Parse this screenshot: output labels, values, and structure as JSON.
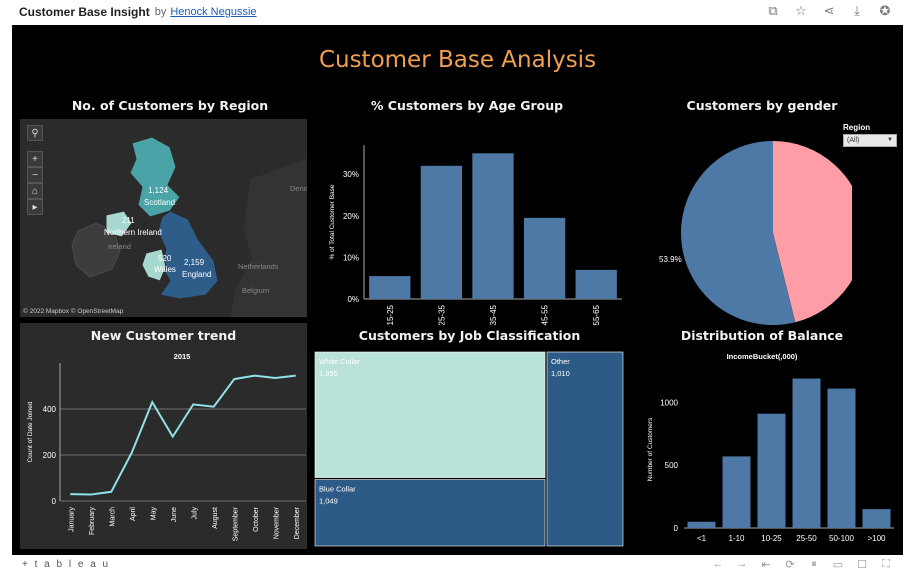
{
  "header": {
    "title": "Customer Base Insight",
    "by": "by",
    "author": "Henock Negussie"
  },
  "dashboard_title": "Customer Base Analysis",
  "panels": {
    "region": "No. of Customers by Region",
    "age": "% Customers by Age Group",
    "gender": "Customers by gender",
    "trend": "New Customer trend",
    "job": "Customers by Job Classification",
    "balance": "Distribution of Balance"
  },
  "filter": {
    "label": "Region",
    "value": "(All)"
  },
  "map": {
    "attribution": "© 2022 Mapbox © OpenStreetMap",
    "regions": [
      {
        "name": "Scotland",
        "value": "1,124"
      },
      {
        "name": "Northern Ireland",
        "value": "211"
      },
      {
        "name": "Wales",
        "value": "520"
      },
      {
        "name": "England",
        "value": "2,159"
      }
    ],
    "basemap_labels": [
      "Ireland",
      "Netherlands",
      "Belgium",
      "Denm"
    ]
  },
  "colors": {
    "bar": "#4e79a7",
    "pink": "#ff9da7",
    "treemap_light": "#b9e2d9",
    "treemap_dark": "#2e5a87",
    "line": "#8fe3e8",
    "title_orange": "#f0a050"
  },
  "chart_data": [
    {
      "type": "bar",
      "title": "% Customers by Age Group",
      "ylabel": "% of Total Customer Base",
      "categories": [
        "15-25",
        "25-35",
        "35-45",
        "45-55",
        "55-65"
      ],
      "values": [
        5.5,
        32,
        35,
        19.5,
        7
      ],
      "ylim": [
        0,
        37
      ],
      "yticks": [
        "0%",
        "10%",
        "20%",
        "30%"
      ]
    },
    {
      "type": "pie",
      "title": "Customers by gender",
      "slices": [
        {
          "label": "53.9%",
          "value": 53.9,
          "color": "#4e79a7"
        },
        {
          "label": "46.1%",
          "value": 46.1,
          "color": "#ff9da7"
        }
      ]
    },
    {
      "type": "line",
      "title": "New Customer trend",
      "subtitle": "2015",
      "ylabel": "Count of Date Joined",
      "categories": [
        "January",
        "February",
        "March",
        "April",
        "May",
        "June",
        "July",
        "August",
        "September",
        "October",
        "November",
        "December"
      ],
      "values": [
        30,
        28,
        40,
        210,
        430,
        280,
        420,
        410,
        530,
        545,
        535,
        545
      ],
      "ylim": [
        0,
        600
      ],
      "yticks": [
        "0",
        "200",
        "400"
      ]
    },
    {
      "type": "table",
      "title": "Customers by Job Classification",
      "items": [
        {
          "label": "White Collar",
          "value": "1,955",
          "n": 1955
        },
        {
          "label": "Blue Collar",
          "value": "1,049",
          "n": 1049
        },
        {
          "label": "Other",
          "value": "1,010",
          "n": 1010
        }
      ]
    },
    {
      "type": "bar",
      "title": "Distribution of Balance",
      "subtitle": "IncomeBucket(,000)",
      "ylabel": "Number of Customers",
      "categories": [
        "<1",
        "1-10",
        "10-25",
        "25-50",
        "50-100",
        ">100"
      ],
      "values": [
        50,
        570,
        910,
        1190,
        1110,
        150
      ],
      "ylim": [
        0,
        1250
      ],
      "yticks": [
        "0",
        "500",
        "1000"
      ]
    }
  ],
  "footer": {
    "brand": "+ t a b l e a u"
  }
}
